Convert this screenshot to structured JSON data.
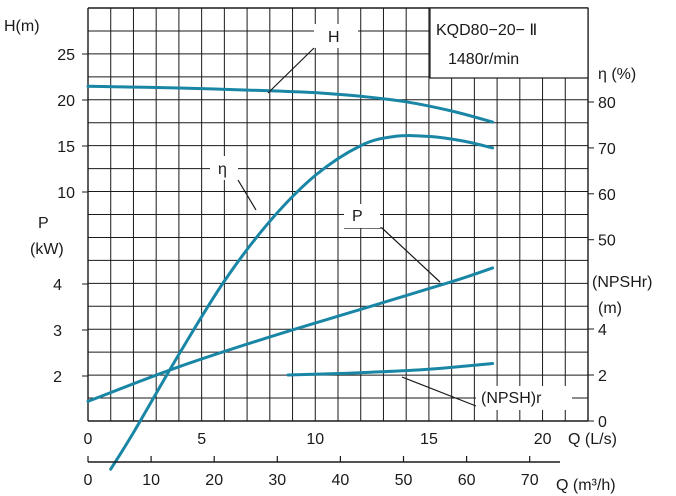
{
  "chart_data": {
    "type": "line",
    "title": "KQD80−20− Ⅱ",
    "subtitle": "1480r/min",
    "colors": {
      "curve": "#1a86a6",
      "grid": "#1a1a1a",
      "text": "#1a1a1a"
    },
    "grid": true,
    "x_axis": {
      "label": "Q (L/s)",
      "ticks": [
        "0",
        "5",
        "10",
        "15",
        "20"
      ],
      "range": [
        0,
        20
      ]
    },
    "x_axis2": {
      "label": "Q (m³/h)",
      "ticks": [
        "0",
        "10",
        "20",
        "30",
        "40",
        "50",
        "60",
        "70"
      ],
      "range": [
        0,
        72
      ]
    },
    "y_left_head": {
      "label": "H(m)",
      "ticks": [
        "10",
        "15",
        "20",
        "25"
      ]
    },
    "y_left_power": {
      "label_1": "P",
      "label_2": "(kW)",
      "ticks": [
        "2",
        "3",
        "4"
      ]
    },
    "y_right_eff": {
      "label": "η (%)",
      "ticks": [
        "50",
        "60",
        "70",
        "80"
      ]
    },
    "y_right_npsh": {
      "label_1": "(NPSHr)",
      "label_2": "(m)",
      "ticks": [
        "0",
        "2",
        "4"
      ]
    },
    "series": [
      {
        "name": "H",
        "axis": "H (m)",
        "points": [
          [
            0,
            21.5
          ],
          [
            4,
            21.3
          ],
          [
            8,
            21.0
          ],
          [
            10,
            20.8
          ],
          [
            12,
            20.4
          ],
          [
            14,
            19.8
          ],
          [
            16,
            18.8
          ],
          [
            17.8,
            17.6
          ]
        ]
      },
      {
        "name": "η",
        "axis": "η (%)",
        "points": [
          [
            1,
            0
          ],
          [
            2,
            8
          ],
          [
            4,
            25
          ],
          [
            6,
            41
          ],
          [
            8,
            54
          ],
          [
            10,
            64
          ],
          [
            12,
            70.5
          ],
          [
            13.5,
            72.5
          ],
          [
            15,
            72.5
          ],
          [
            16.5,
            71.5
          ],
          [
            17.8,
            70
          ]
        ]
      },
      {
        "name": "P",
        "axis": "P (kW)",
        "points": [
          [
            0,
            1.45
          ],
          [
            4,
            2.2
          ],
          [
            8,
            2.85
          ],
          [
            12,
            3.45
          ],
          [
            16,
            4.05
          ],
          [
            17.8,
            4.35
          ]
        ]
      },
      {
        "name": "(NPSH)r",
        "axis": "NPSHr (m)",
        "points": [
          [
            8.8,
            2.0
          ],
          [
            12,
            2.1
          ],
          [
            15,
            2.25
          ],
          [
            17.8,
            2.5
          ]
        ]
      }
    ]
  }
}
